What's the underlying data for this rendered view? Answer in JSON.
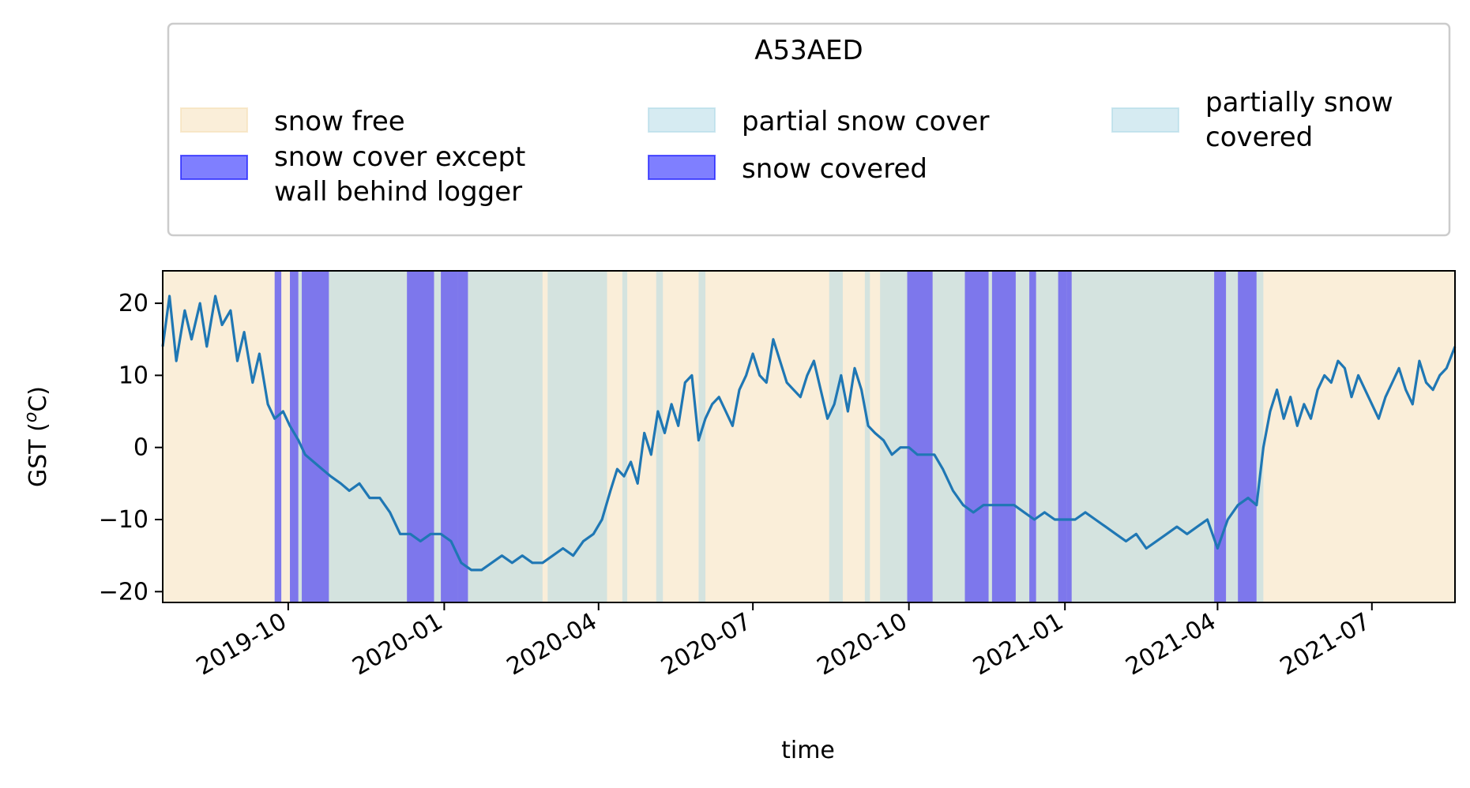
{
  "chart_data": {
    "type": "line",
    "title": "A53AED",
    "xlabel": "time",
    "ylabel": "GST (",
    "ylabel_italic": "o",
    "ylabel_suffix": "C)",
    "xlim": [
      "2019-07-19",
      "2021-08-19"
    ],
    "ylim": [
      -21.5,
      24.5
    ],
    "x_ticks": [
      "2019-10",
      "2020-01",
      "2020-04",
      "2020-07",
      "2020-10",
      "2021-01",
      "2021-04",
      "2021-07"
    ],
    "y_ticks": [
      20,
      10,
      0,
      -10,
      -20
    ],
    "y_tick_labels": [
      "20",
      "10",
      "0",
      "−10",
      "−20"
    ],
    "grid": false,
    "legend_placement": "above plot",
    "legend_columns": [
      [
        {
          "label": [
            "snow free"
          ],
          "color": "#f5deb3"
        },
        {
          "label": [
            "snow cover except",
            "wall behind logger"
          ],
          "color": "#0000ff"
        }
      ],
      [
        {
          "label": [
            "partial snow cover"
          ],
          "color": "#add8e6"
        },
        {
          "label": [
            "snow covered"
          ],
          "color": "#0000ff"
        }
      ],
      [
        {
          "label": [
            "partially snow",
            "covered"
          ],
          "color": "#add8e6"
        }
      ]
    ],
    "colors": {
      "line": "#1f77b4",
      "snow_free": "#f5deb3",
      "partial": "#add8e6",
      "covered": "#0000ff"
    },
    "snow_periods": [
      {
        "start": "2019-09-23",
        "end": "2019-09-27",
        "state": "covered"
      },
      {
        "start": "2019-09-27",
        "end": "2019-10-02",
        "state": "snow free"
      },
      {
        "start": "2019-10-02",
        "end": "2019-10-07",
        "state": "covered"
      },
      {
        "start": "2019-10-07",
        "end": "2019-10-09",
        "state": "partial"
      },
      {
        "start": "2019-10-09",
        "end": "2019-10-25",
        "state": "covered"
      },
      {
        "start": "2019-10-25",
        "end": "2019-12-10",
        "state": "partial"
      },
      {
        "start": "2019-12-10",
        "end": "2019-12-26",
        "state": "covered"
      },
      {
        "start": "2019-12-26",
        "end": "2019-12-30",
        "state": "partial"
      },
      {
        "start": "2019-12-30",
        "end": "2020-01-09",
        "state": "covered"
      },
      {
        "start": "2020-01-09",
        "end": "2020-01-15",
        "state": "covered"
      },
      {
        "start": "2020-01-15",
        "end": "2020-02-28",
        "state": "partial"
      },
      {
        "start": "2020-02-28",
        "end": "2020-03-02",
        "state": "snow free"
      },
      {
        "start": "2020-03-02",
        "end": "2020-04-06",
        "state": "partial"
      },
      {
        "start": "2020-04-06",
        "end": "2020-04-15",
        "state": "snow free"
      },
      {
        "start": "2020-04-15",
        "end": "2020-04-18",
        "state": "partial"
      },
      {
        "start": "2020-04-18",
        "end": "2020-05-05",
        "state": "snow free"
      },
      {
        "start": "2020-05-05",
        "end": "2020-05-09",
        "state": "partial"
      },
      {
        "start": "2020-05-09",
        "end": "2020-05-30",
        "state": "snow free"
      },
      {
        "start": "2020-05-30",
        "end": "2020-06-03",
        "state": "partial"
      },
      {
        "start": "2020-08-15",
        "end": "2020-08-23",
        "state": "partial"
      },
      {
        "start": "2020-09-05",
        "end": "2020-09-08",
        "state": "partial"
      },
      {
        "start": "2020-09-14",
        "end": "2020-09-30",
        "state": "partial"
      },
      {
        "start": "2020-09-30",
        "end": "2020-10-15",
        "state": "covered"
      },
      {
        "start": "2020-10-15",
        "end": "2020-11-03",
        "state": "partial"
      },
      {
        "start": "2020-11-03",
        "end": "2020-11-17",
        "state": "covered"
      },
      {
        "start": "2020-11-17",
        "end": "2020-11-19",
        "state": "partial"
      },
      {
        "start": "2020-11-19",
        "end": "2020-12-03",
        "state": "covered"
      },
      {
        "start": "2020-12-03",
        "end": "2020-12-11",
        "state": "partial"
      },
      {
        "start": "2020-12-11",
        "end": "2020-12-15",
        "state": "covered"
      },
      {
        "start": "2020-12-15",
        "end": "2020-12-28",
        "state": "partial"
      },
      {
        "start": "2020-12-28",
        "end": "2021-01-02",
        "state": "covered"
      },
      {
        "start": "2021-01-02",
        "end": "2021-01-05",
        "state": "covered"
      },
      {
        "start": "2021-01-05",
        "end": "2021-03-30",
        "state": "partial"
      },
      {
        "start": "2021-03-30",
        "end": "2021-04-06",
        "state": "covered"
      },
      {
        "start": "2021-04-06",
        "end": "2021-04-13",
        "state": "partial"
      },
      {
        "start": "2021-04-13",
        "end": "2021-04-24",
        "state": "covered"
      },
      {
        "start": "2021-04-24",
        "end": "2021-04-28",
        "state": "partial"
      }
    ],
    "series": [
      {
        "values_note_free": null,
        "dates": [
          "2019-07-19",
          "2019-07-23",
          "2019-07-27",
          "2019-08-01",
          "2019-08-05",
          "2019-08-10",
          "2019-08-14",
          "2019-08-19",
          "2019-08-23",
          "2019-08-28",
          "2019-09-01",
          "2019-09-05",
          "2019-09-10",
          "2019-09-14",
          "2019-09-19",
          "2019-09-23",
          "2019-09-28",
          "2019-10-02",
          "2019-10-07",
          "2019-10-11",
          "2019-10-16",
          "2019-10-21",
          "2019-10-26",
          "2019-11-01",
          "2019-11-06",
          "2019-11-12",
          "2019-11-18",
          "2019-11-24",
          "2019-11-30",
          "2019-12-06",
          "2019-12-12",
          "2019-12-18",
          "2019-12-24",
          "2019-12-30",
          "2020-01-05",
          "2020-01-11",
          "2020-01-17",
          "2020-01-23",
          "2020-01-29",
          "2020-02-04",
          "2020-02-10",
          "2020-02-16",
          "2020-02-22",
          "2020-02-28",
          "2020-03-05",
          "2020-03-11",
          "2020-03-17",
          "2020-03-23",
          "2020-03-29",
          "2020-04-03",
          "2020-04-08",
          "2020-04-12",
          "2020-04-16",
          "2020-04-20",
          "2020-04-24",
          "2020-04-28",
          "2020-05-02",
          "2020-05-06",
          "2020-05-10",
          "2020-05-14",
          "2020-05-18",
          "2020-05-22",
          "2020-05-26",
          "2020-05-30",
          "2020-06-03",
          "2020-06-07",
          "2020-06-11",
          "2020-06-15",
          "2020-06-19",
          "2020-06-23",
          "2020-06-27",
          "2020-07-01",
          "2020-07-05",
          "2020-07-09",
          "2020-07-13",
          "2020-07-17",
          "2020-07-21",
          "2020-07-25",
          "2020-07-29",
          "2020-08-02",
          "2020-08-06",
          "2020-08-10",
          "2020-08-14",
          "2020-08-18",
          "2020-08-22",
          "2020-08-26",
          "2020-08-30",
          "2020-09-03",
          "2020-09-07",
          "2020-09-11",
          "2020-09-16",
          "2020-09-21",
          "2020-09-26",
          "2020-10-01",
          "2020-10-06",
          "2020-10-11",
          "2020-10-16",
          "2020-10-21",
          "2020-10-27",
          "2020-11-02",
          "2020-11-08",
          "2020-11-14",
          "2020-11-20",
          "2020-11-26",
          "2020-12-02",
          "2020-12-08",
          "2020-12-14",
          "2020-12-20",
          "2020-12-26",
          "2021-01-01",
          "2021-01-07",
          "2021-01-13",
          "2021-01-19",
          "2021-01-25",
          "2021-01-31",
          "2021-02-06",
          "2021-02-12",
          "2021-02-18",
          "2021-02-24",
          "2021-03-02",
          "2021-03-08",
          "2021-03-14",
          "2021-03-20",
          "2021-03-26",
          "2021-04-01",
          "2021-04-07",
          "2021-04-13",
          "2021-04-19",
          "2021-04-24",
          "2021-04-28",
          "2021-05-02",
          "2021-05-06",
          "2021-05-10",
          "2021-05-14",
          "2021-05-18",
          "2021-05-22",
          "2021-05-26",
          "2021-05-30",
          "2021-06-03",
          "2021-06-07",
          "2021-06-11",
          "2021-06-15",
          "2021-06-19",
          "2021-06-23",
          "2021-06-27",
          "2021-07-01",
          "2021-07-05",
          "2021-07-09",
          "2021-07-13",
          "2021-07-17",
          "2021-07-21",
          "2021-07-25",
          "2021-07-29",
          "2021-08-02",
          "2021-08-06",
          "2021-08-10",
          "2021-08-14",
          "2021-08-19"
        ],
        "values": [
          14,
          21,
          12,
          19,
          15,
          20,
          14,
          21,
          17,
          19,
          12,
          16,
          9,
          13,
          6,
          4,
          5,
          3,
          1,
          -1,
          -2,
          -3,
          -4,
          -5,
          -6,
          -5,
          -7,
          -7,
          -9,
          -12,
          -12,
          -13,
          -12,
          -12,
          -13,
          -16,
          -17,
          -17,
          -16,
          -15,
          -16,
          -15,
          -16,
          -16,
          -15,
          -14,
          -15,
          -13,
          -12,
          -10,
          -6,
          -3,
          -4,
          -2,
          -5,
          2,
          -1,
          5,
          2,
          6,
          3,
          9,
          10,
          1,
          4,
          6,
          7,
          5,
          3,
          8,
          10,
          13,
          10,
          9,
          15,
          12,
          9,
          8,
          7,
          10,
          12,
          8,
          4,
          6,
          10,
          5,
          11,
          8,
          3,
          2,
          1,
          -1,
          0,
          0,
          -1,
          -1,
          -1,
          -3,
          -6,
          -8,
          -9,
          -8,
          -8,
          -8,
          -8,
          -9,
          -10,
          -9,
          -10,
          -10,
          -10,
          -9,
          -10,
          -11,
          -12,
          -13,
          -12,
          -14,
          -13,
          -12,
          -11,
          -12,
          -11,
          -10,
          -14,
          -10,
          -8,
          -7,
          -8,
          0,
          5,
          8,
          4,
          7,
          3,
          6,
          4,
          8,
          10,
          9,
          12,
          11,
          7,
          10,
          8,
          6,
          4,
          7,
          9,
          11,
          8,
          6,
          12,
          9,
          8,
          10,
          11,
          14
        ]
      }
    ]
  }
}
